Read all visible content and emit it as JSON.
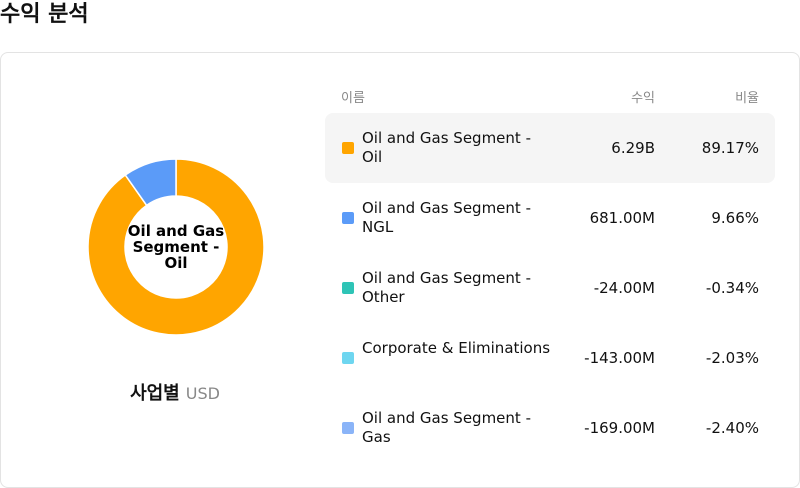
{
  "page": {
    "title": "수익 분석"
  },
  "chart_data": {
    "type": "pie",
    "title": "",
    "center_label": "Oil and Gas Segment - Oil",
    "caption": "사업별",
    "unit": "USD",
    "headers": {
      "name": "이름",
      "revenue": "수익",
      "ratio": "비율"
    },
    "slices": [
      {
        "label": "Oil and Gas Segment - Oil",
        "value_text": "6.29B",
        "value": 6290000000,
        "percent": 89.17,
        "percent_text": "89.17%",
        "color": "#FFA500",
        "selected": true
      },
      {
        "label": "Oil and Gas Segment - NGL",
        "value_text": "681.00M",
        "value": 681000000,
        "percent": 9.66,
        "percent_text": "9.66%",
        "color": "#5B9BF8",
        "selected": false
      },
      {
        "label": "Oil and Gas Segment - Other",
        "value_text": "-24.00M",
        "value": -24000000,
        "percent": -0.34,
        "percent_text": "-0.34%",
        "color": "#2EC4B6",
        "selected": false
      },
      {
        "label": "Corporate & Eliminations",
        "value_text": "-143.00M",
        "value": -143000000,
        "percent": -2.03,
        "percent_text": "-2.03%",
        "color": "#6ED6F0",
        "selected": false
      },
      {
        "label": "Oil and Gas Segment - Gas",
        "value_text": "-169.00M",
        "value": -169000000,
        "percent": -2.4,
        "percent_text": "-2.40%",
        "color": "#8AB4F8",
        "selected": false
      }
    ]
  }
}
